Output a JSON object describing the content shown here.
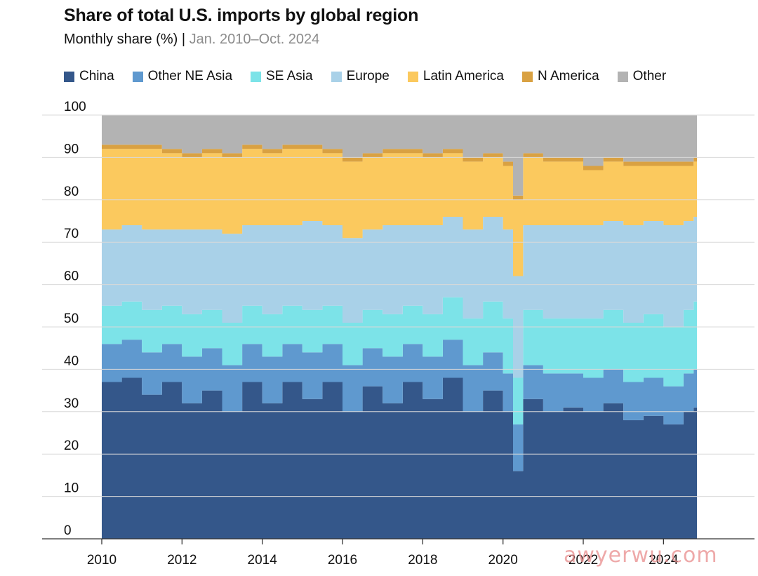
{
  "header": {
    "title": "Share of total U.S. imports by global region",
    "subtitle_main": "Monthly share (%)",
    "subtitle_sep": "|",
    "subtitle_range": "Jan. 2010–Oct. 2024"
  },
  "watermark": "awyerwu.com",
  "chart_data": {
    "type": "area",
    "stacked": true,
    "title": "Share of total U.S. imports by global region",
    "subtitle": "Monthly share (%) | Jan. 2010–Oct. 2024",
    "xlabel": "",
    "ylabel": "",
    "ylim": [
      0,
      100
    ],
    "yticks": [
      0,
      10,
      20,
      30,
      40,
      50,
      60,
      70,
      80,
      90,
      100
    ],
    "xticks": [
      "2010",
      "2012",
      "2014",
      "2016",
      "2018",
      "2020",
      "2022",
      "2024"
    ],
    "x_range": [
      "2010-01",
      "2024-10"
    ],
    "grid": true,
    "legend_position": "top",
    "x": [
      "2010-01",
      "2010-07",
      "2011-01",
      "2011-07",
      "2012-01",
      "2012-07",
      "2013-01",
      "2013-07",
      "2014-01",
      "2014-07",
      "2015-01",
      "2015-07",
      "2016-01",
      "2016-07",
      "2017-01",
      "2017-07",
      "2018-01",
      "2018-07",
      "2019-01",
      "2019-07",
      "2020-01",
      "2020-04",
      "2020-07",
      "2021-01",
      "2021-07",
      "2022-01",
      "2022-07",
      "2023-01",
      "2023-07",
      "2024-01",
      "2024-07",
      "2024-10"
    ],
    "series": [
      {
        "name": "China",
        "color": "#34578a",
        "values": [
          37,
          38,
          34,
          37,
          32,
          35,
          30,
          37,
          32,
          37,
          33,
          37,
          30,
          36,
          32,
          37,
          33,
          38,
          30,
          35,
          30,
          16,
          33,
          30,
          31,
          30,
          32,
          28,
          29,
          27,
          30,
          31
        ]
      },
      {
        "name": "Other NE Asia",
        "color": "#5f99cf",
        "values": [
          9,
          9,
          10,
          9,
          11,
          10,
          11,
          9,
          11,
          9,
          11,
          9,
          11,
          9,
          11,
          9,
          10,
          9,
          11,
          9,
          9,
          11,
          8,
          9,
          8,
          8,
          8,
          9,
          9,
          9,
          9,
          9
        ]
      },
      {
        "name": "SE Asia",
        "color": "#7ce3e8",
        "values": [
          9,
          9,
          10,
          9,
          10,
          9,
          10,
          9,
          10,
          9,
          10,
          9,
          10,
          9,
          10,
          9,
          10,
          10,
          11,
          12,
          13,
          11,
          13,
          13,
          13,
          14,
          14,
          14,
          15,
          14,
          15,
          16
        ]
      },
      {
        "name": "Europe",
        "color": "#a9d1e8",
        "values": [
          18,
          18,
          19,
          18,
          20,
          19,
          21,
          19,
          21,
          19,
          21,
          19,
          20,
          19,
          21,
          19,
          21,
          19,
          21,
          20,
          21,
          24,
          20,
          22,
          22,
          22,
          21,
          23,
          22,
          24,
          21,
          20
        ]
      },
      {
        "name": "Latin America",
        "color": "#fbc95e",
        "values": [
          19,
          18,
          19,
          18,
          17,
          18,
          18,
          18,
          17,
          18,
          17,
          17,
          18,
          17,
          17,
          17,
          16,
          15,
          16,
          14,
          15,
          18,
          16,
          15,
          15,
          13,
          14,
          14,
          13,
          14,
          13,
          13
        ]
      },
      {
        "name": "N America",
        "color": "#d9a142",
        "values": [
          1,
          1,
          1,
          1,
          1,
          1,
          1,
          1,
          1,
          1,
          1,
          1,
          1,
          1,
          1,
          1,
          1,
          1,
          1,
          1,
          1,
          1,
          1,
          1,
          1,
          1,
          1,
          1,
          1,
          1,
          1,
          1
        ]
      },
      {
        "name": "Other",
        "color": "#b3b3b3",
        "values": [
          8,
          7,
          7,
          8,
          9,
          8,
          9,
          7,
          8,
          7,
          7,
          8,
          10,
          9,
          8,
          8,
          9,
          8,
          10,
          9,
          11,
          19,
          9,
          10,
          10,
          12,
          10,
          11,
          11,
          11,
          11,
          10
        ]
      }
    ]
  }
}
